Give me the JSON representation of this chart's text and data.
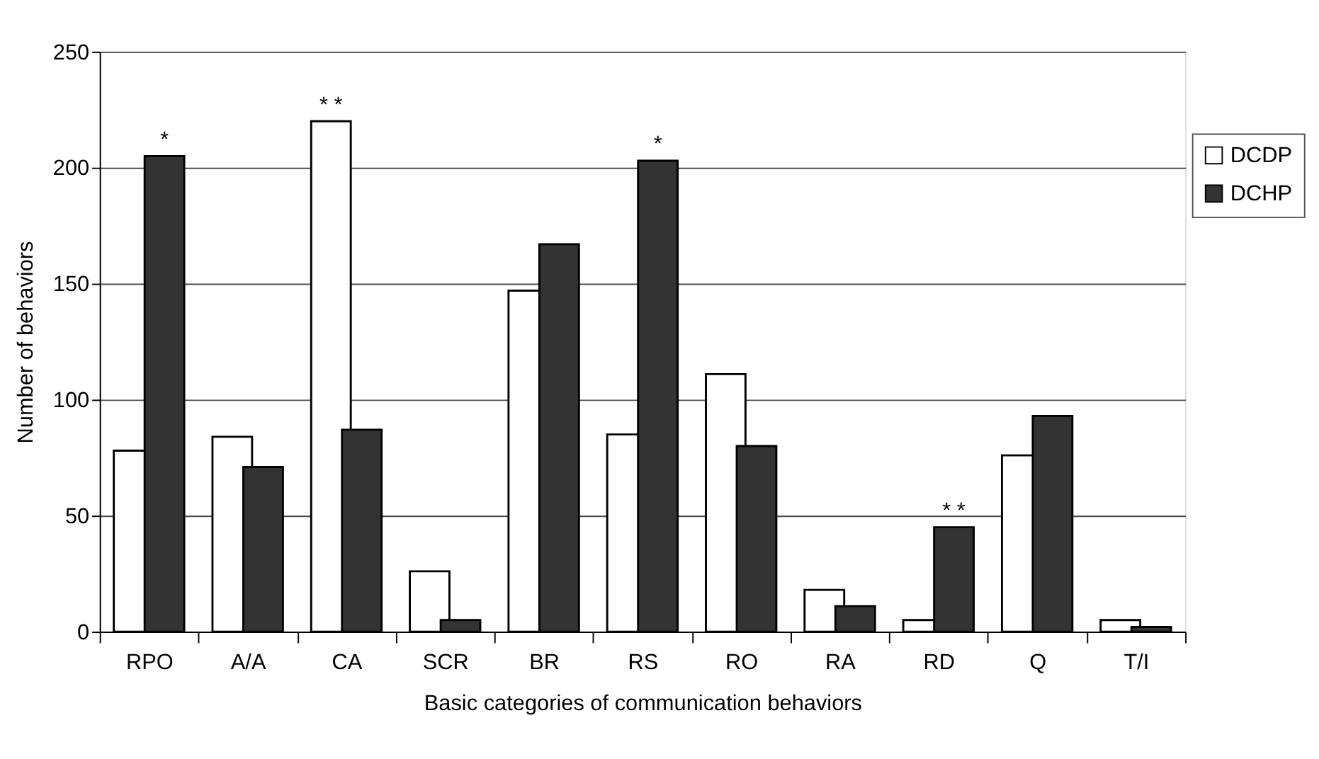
{
  "chart_data": {
    "type": "bar",
    "xlabel": "Basic categories of communication behaviors",
    "ylabel": "Number of  behaviors",
    "categories": [
      "RPO",
      "A/A",
      "CA",
      "SCR",
      "BR",
      "RS",
      "RO",
      "RA",
      "RD",
      "Q",
      "T/I"
    ],
    "series": [
      {
        "name": "DCDP",
        "color": "#ffffff",
        "values": [
          78,
          84,
          220,
          26,
          147,
          85,
          111,
          18,
          5,
          76,
          5
        ]
      },
      {
        "name": "DCHP",
        "color": "#333333",
        "values": [
          205,
          71,
          87,
          5,
          167,
          203,
          80,
          11,
          45,
          93,
          2
        ]
      }
    ],
    "ylim": [
      0,
      250
    ],
    "yticks": [
      0,
      50,
      100,
      150,
      200,
      250
    ],
    "grid": "y",
    "legend": "top right",
    "annotations": [
      {
        "text": "*",
        "x": "RPO",
        "y": 205
      },
      {
        "text": "* *",
        "x": "CA",
        "y": 220
      },
      {
        "text": "*",
        "x": "RS",
        "y": 203
      },
      {
        "text": "* *",
        "x": "RD",
        "y": 45
      }
    ]
  }
}
